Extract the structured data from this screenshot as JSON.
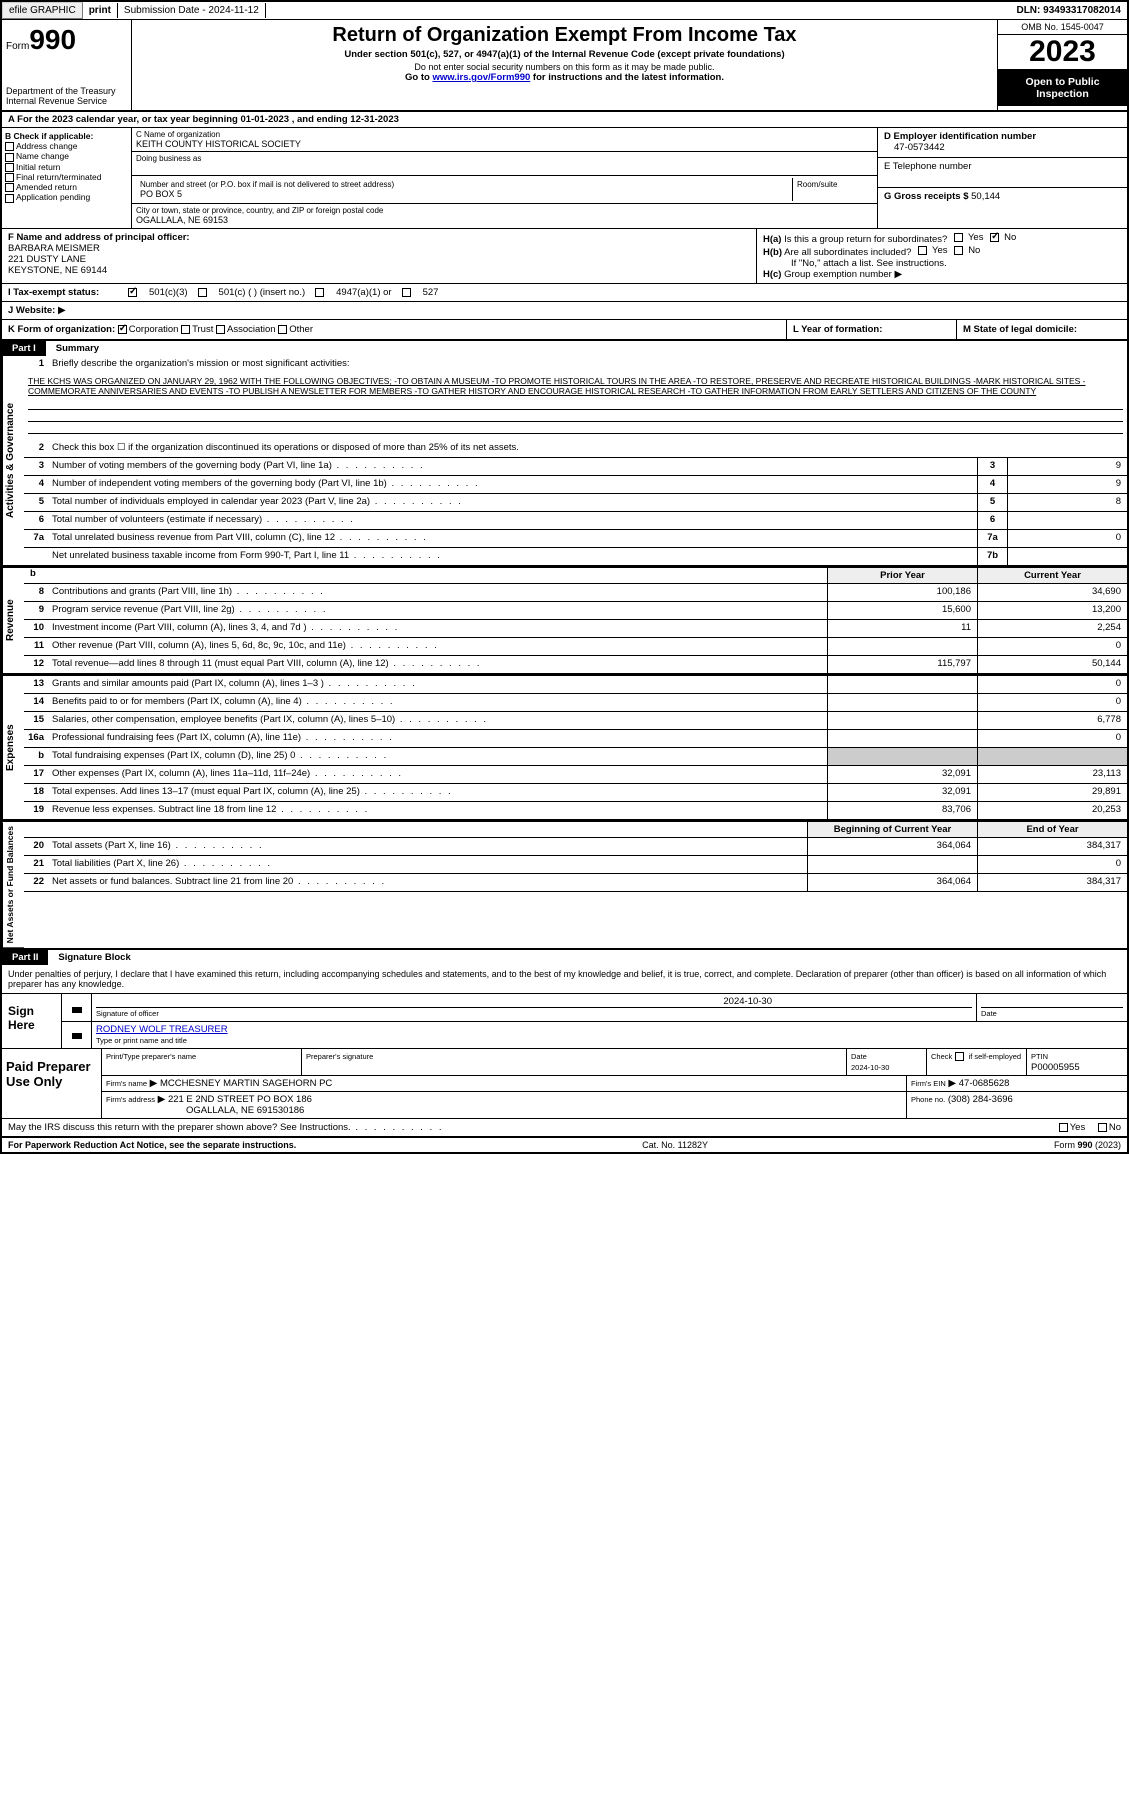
{
  "topbar": {
    "efile": "efile GRAPHIC",
    "print": "print",
    "submission": "Submission Date - 2024-11-12",
    "dln": "DLN: 93493317082014"
  },
  "header": {
    "form_label": "Form",
    "form_number": "990",
    "dept1": "Department of the Treasury",
    "dept2": "Internal Revenue Service",
    "title": "Return of Organization Exempt From Income Tax",
    "subtitle": "Under section 501(c), 527, or 4947(a)(1) of the Internal Revenue Code (except private foundations)",
    "privacy": "Do not enter social security numbers on this form as it may be made public.",
    "goto_pre": "Go to ",
    "goto_link": "www.irs.gov/Form990",
    "goto_post": " for instructions and the latest information.",
    "omb": "OMB No. 1545-0047",
    "year": "2023",
    "inspection": "Open to Public Inspection"
  },
  "row_a": "A For the 2023 calendar year, or tax year beginning 01-01-2023   , and ending 12-31-2023",
  "section_b": {
    "title": "B Check if applicable:",
    "items": [
      "Address change",
      "Name change",
      "Initial return",
      "Final return/terminated",
      "Amended return",
      "Application pending"
    ]
  },
  "section_c": {
    "name_label": "C Name of organization",
    "name": "KEITH COUNTY HISTORICAL SOCIETY",
    "dba_label": "Doing business as",
    "addr_label": "Number and street (or P.O. box if mail is not delivered to street address)",
    "addr": "PO BOX 5",
    "room_label": "Room/suite",
    "city_label": "City or town, state or province, country, and ZIP or foreign postal code",
    "city": "OGALLALA, NE   69153"
  },
  "section_d": {
    "ein_label": "D Employer identification number",
    "ein": "47-0573442",
    "phone_label": "E Telephone number",
    "receipts_label": "G Gross receipts $",
    "receipts": "50,144"
  },
  "officer": {
    "label": "F Name and address of principal officer:",
    "name": "BARBARA MEISMER",
    "addr": "221 DUSTY LANE",
    "city": "KEYSTONE, NE  69144"
  },
  "section_h": {
    "ha_label": "H(a)",
    "ha_text": "Is this a group return for subordinates?",
    "hb_label": "H(b)",
    "hb_text": "Are all subordinates included?",
    "hb_note": "If \"No,\" attach a list. See instructions.",
    "hc_label": "H(c)",
    "hc_text": "Group exemption number",
    "yes": "Yes",
    "no": "No",
    "arrow": "▶"
  },
  "status": {
    "label": "I    Tax-exempt status:",
    "opt1": "501(c)(3)",
    "opt2": "501(c) (  ) (insert no.)",
    "opt3": "4947(a)(1) or",
    "opt4": "527"
  },
  "website": {
    "label": "J   Website:",
    "arrow": "▶"
  },
  "row_k": {
    "label": "K Form of organization:",
    "opts": [
      "Corporation",
      "Trust",
      "Association",
      "Other"
    ],
    "l_label": "L Year of formation:",
    "m_label": "M State of legal domicile:"
  },
  "part1": {
    "num": "Part I",
    "title": "Summary"
  },
  "mission": {
    "label": "Briefly describe the organization's mission or most significant activities:",
    "text": "THE KCHS WAS ORGANIZED ON JANUARY 29, 1962 WITH THE FOLLOWING OBJECTIVES; -TO OBTAIN A MUSEUM -TO PROMOTE HISTORICAL TOURS IN THE AREA -TO RESTORE, PRESERVE AND RECREATE HISTORICAL BUILDINGS -MARK HISTORICAL SITES -COMMEMORATE ANNIVERSARIES AND EVENTS -TO PUBLISH A NEWSLETTER FOR MEMBERS -TO GATHER HISTORY AND ENCOURAGE HISTORICAL RESEARCH -TO GATHER INFORMATION FROM EARLY SETTLERS AND CITIZENS OF THE COUNTY"
  },
  "governance_lines": [
    {
      "num": "2",
      "text": "Check this box ☐  if the organization discontinued its operations or disposed of more than 25% of its net assets.",
      "box": "",
      "val": ""
    },
    {
      "num": "3",
      "text": "Number of voting members of the governing body (Part VI, line 1a)",
      "box": "3",
      "val": "9",
      "dots": true
    },
    {
      "num": "4",
      "text": "Number of independent voting members of the governing body (Part VI, line 1b)",
      "box": "4",
      "val": "9",
      "dots": true
    },
    {
      "num": "5",
      "text": "Total number of individuals employed in calendar year 2023 (Part V, line 2a)",
      "box": "5",
      "val": "8",
      "dots": true
    },
    {
      "num": "6",
      "text": "Total number of volunteers (estimate if necessary)",
      "box": "6",
      "val": "",
      "dots": true
    },
    {
      "num": "7a",
      "text": "Total unrelated business revenue from Part VIII, column (C), line 12",
      "box": "7a",
      "val": "0",
      "dots": true
    },
    {
      "num": "",
      "text": "Net unrelated business taxable income from Form 990-T, Part I, line 11",
      "box": "7b",
      "val": "",
      "dots": true
    }
  ],
  "col_headers": {
    "prior": "Prior Year",
    "current": "Current Year"
  },
  "revenue_lines": [
    {
      "num": "8",
      "text": "Contributions and grants (Part VIII, line 1h)",
      "prior": "100,186",
      "current": "34,690"
    },
    {
      "num": "9",
      "text": "Program service revenue (Part VIII, line 2g)",
      "prior": "15,600",
      "current": "13,200"
    },
    {
      "num": "10",
      "text": "Investment income (Part VIII, column (A), lines 3, 4, and 7d )",
      "prior": "11",
      "current": "2,254"
    },
    {
      "num": "11",
      "text": "Other revenue (Part VIII, column (A), lines 5, 6d, 8c, 9c, 10c, and 11e)",
      "prior": "",
      "current": "0"
    },
    {
      "num": "12",
      "text": "Total revenue—add lines 8 through 11 (must equal Part VIII, column (A), line 12)",
      "prior": "115,797",
      "current": "50,144"
    }
  ],
  "expense_lines": [
    {
      "num": "13",
      "text": "Grants and similar amounts paid (Part IX, column (A), lines 1–3 )",
      "prior": "",
      "current": "0"
    },
    {
      "num": "14",
      "text": "Benefits paid to or for members (Part IX, column (A), line 4)",
      "prior": "",
      "current": "0"
    },
    {
      "num": "15",
      "text": "Salaries, other compensation, employee benefits (Part IX, column (A), lines 5–10)",
      "prior": "",
      "current": "6,778"
    },
    {
      "num": "16a",
      "text": "Professional fundraising fees (Part IX, column (A), line 11e)",
      "prior": "",
      "current": "0"
    },
    {
      "num": "b",
      "text": "Total fundraising expenses (Part IX, column (D), line 25) 0",
      "prior": "shaded",
      "current": "shaded"
    },
    {
      "num": "17",
      "text": "Other expenses (Part IX, column (A), lines 11a–11d, 11f–24e)",
      "prior": "32,091",
      "current": "23,113"
    },
    {
      "num": "18",
      "text": "Total expenses. Add lines 13–17 (must equal Part IX, column (A), line 25)",
      "prior": "32,091",
      "current": "29,891"
    },
    {
      "num": "19",
      "text": "Revenue less expenses. Subtract line 18 from line 12",
      "prior": "83,706",
      "current": "20,253"
    }
  ],
  "balance_headers": {
    "begin": "Beginning of Current Year",
    "end": "End of Year"
  },
  "balance_lines": [
    {
      "num": "20",
      "text": "Total assets (Part X, line 16)",
      "begin": "364,064",
      "end": "384,317"
    },
    {
      "num": "21",
      "text": "Total liabilities (Part X, line 26)",
      "begin": "",
      "end": "0"
    },
    {
      "num": "22",
      "text": "Net assets or fund balances. Subtract line 21 from line 20",
      "begin": "364,064",
      "end": "384,317"
    }
  ],
  "vertical_labels": {
    "gov": "Activities & Governance",
    "rev": "Revenue",
    "exp": "Expenses",
    "bal": "Net Assets or Fund Balances"
  },
  "part2": {
    "num": "Part II",
    "title": "Signature Block"
  },
  "sig_intro": "Under penalties of perjury, I declare that I have examined this return, including accompanying schedules and statements, and to the best of my knowledge and belief, it is true, correct, and complete. Declaration of preparer (other than officer) is based on all information of which preparer has any knowledge.",
  "sign_here": {
    "label": "Sign Here",
    "sig_date": "2024-10-30",
    "sig_label": "Signature of officer",
    "officer": "RODNEY WOLF  TREASURER",
    "name_label": "Type or print name and title",
    "date_label": "Date"
  },
  "preparer": {
    "label": "Paid Preparer Use Only",
    "name_label": "Print/Type preparer's name",
    "sig_label": "Preparer's signature",
    "date_label": "Date",
    "date": "2024-10-30",
    "check_label": "Check",
    "check_if": "if self-employed",
    "ptin_label": "PTIN",
    "ptin": "P00005955",
    "firm_name_label": "Firm's name",
    "firm_name": "MCCHESNEY MARTIN SAGEHORN PC",
    "firm_ein_label": "Firm's EIN",
    "firm_ein": "47-0685628",
    "firm_addr_label": "Firm's address",
    "firm_addr1": "221 E 2ND STREET PO BOX 186",
    "firm_addr2": "OGALLALA, NE  691530186",
    "phone_label": "Phone no.",
    "phone": "(308) 284-3696",
    "arrow": "▶"
  },
  "discuss": {
    "text": "May the IRS discuss this return with the preparer shown above? See Instructions.",
    "yes": "Yes",
    "no": "No"
  },
  "footer": {
    "paperwork": "For Paperwork Reduction Act Notice, see the separate instructions.",
    "cat": "Cat. No. 11282Y",
    "form": "Form 990 (2023)"
  }
}
